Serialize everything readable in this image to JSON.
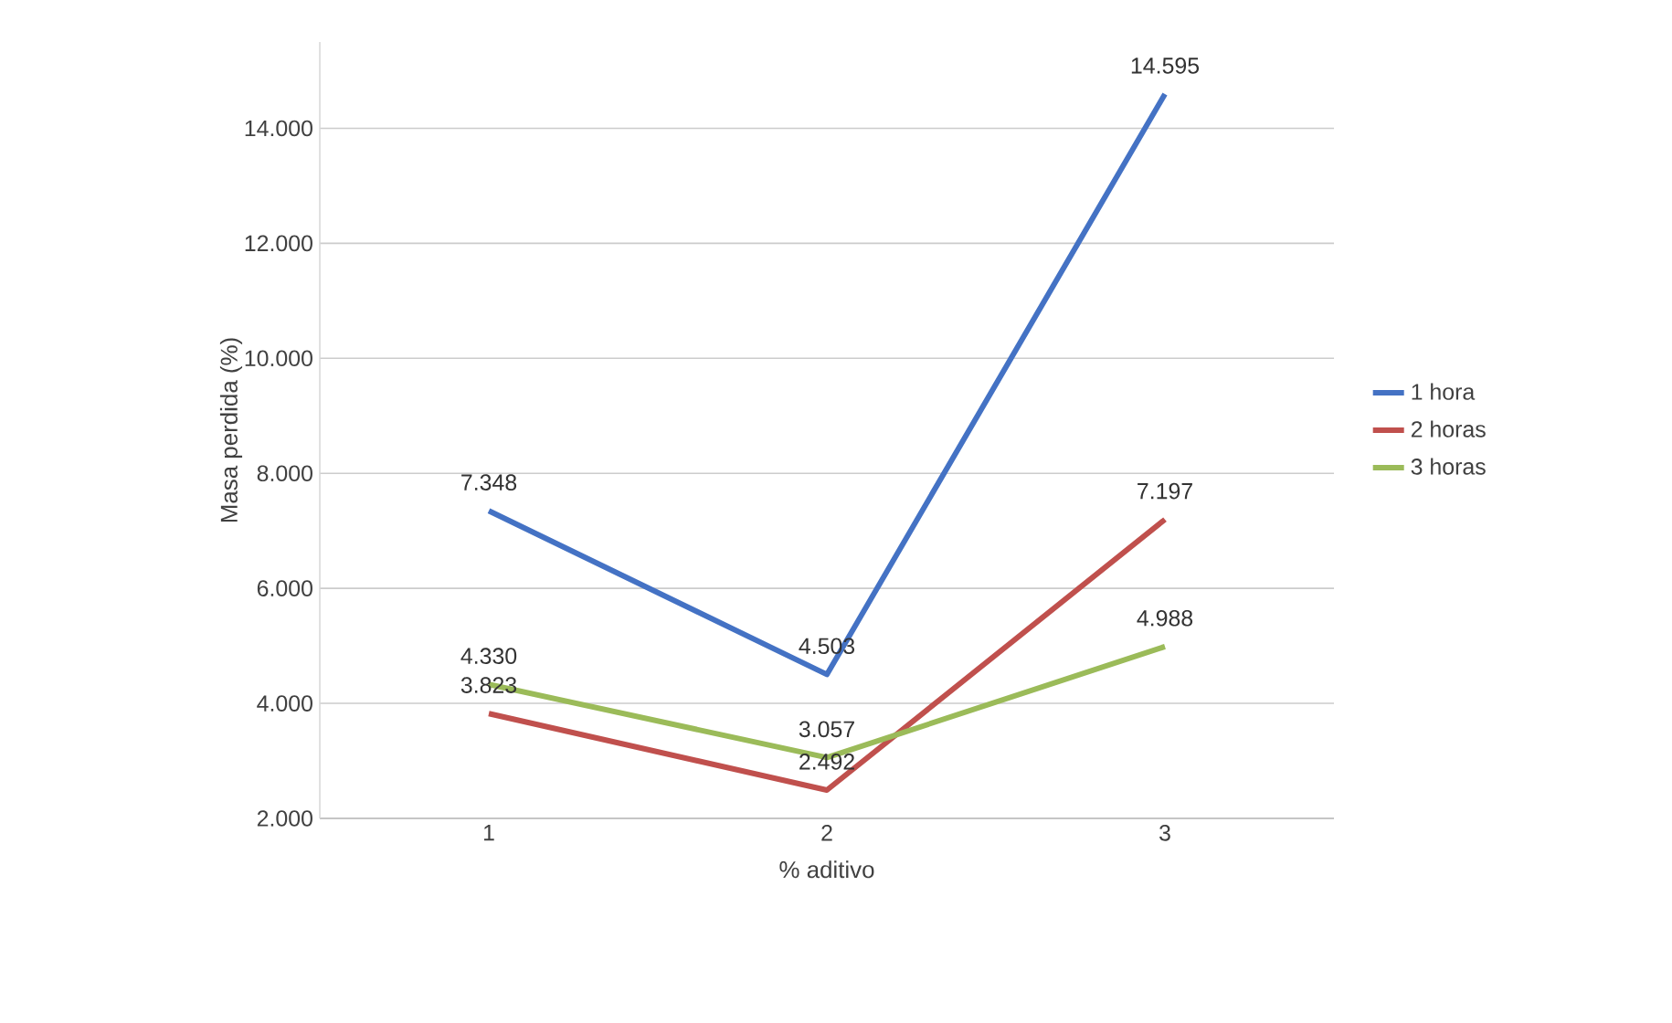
{
  "chart_data": {
    "type": "line",
    "xlabel": "% aditivo",
    "ylabel": "Masa perdida (%)",
    "categories": [
      "1",
      "2",
      "3"
    ],
    "series": [
      {
        "name": "1 hora",
        "color": "#4472c4",
        "values": [
          7.348,
          4.503,
          14.595
        ],
        "value_labels": [
          "7.348",
          "4.503",
          "14.595"
        ]
      },
      {
        "name": "2 horas",
        "color": "#c0504d",
        "values": [
          3.823,
          2.492,
          7.197
        ],
        "value_labels": [
          "3.823",
          "2.492",
          "7.197"
        ]
      },
      {
        "name": "3 horas",
        "color": "#9bbb59",
        "values": [
          4.33,
          3.057,
          4.988
        ],
        "value_labels": [
          "4.330",
          "3.057",
          "4.988"
        ]
      }
    ],
    "ylim": [
      2,
      15.5
    ],
    "yticks": [
      {
        "value": 2,
        "label": "2.000"
      },
      {
        "value": 4,
        "label": "4.000"
      },
      {
        "value": 6,
        "label": "6.000"
      },
      {
        "value": 8,
        "label": "8.000"
      },
      {
        "value": 10,
        "label": "10.000"
      },
      {
        "value": 12,
        "label": "12.000"
      },
      {
        "value": 14,
        "label": "14.000"
      }
    ],
    "grid": "y",
    "legend": "right",
    "marker": "none",
    "line_style": "solid"
  }
}
